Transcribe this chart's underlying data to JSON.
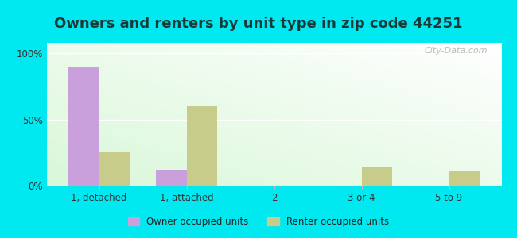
{
  "title": "Owners and renters by unit type in zip code 44251",
  "categories": [
    "1, detached",
    "1, attached",
    "2",
    "3 or 4",
    "5 to 9"
  ],
  "owner_values": [
    90,
    12,
    0,
    0,
    0
  ],
  "renter_values": [
    25,
    60,
    0,
    14,
    11
  ],
  "owner_color": "#c9a0dc",
  "renter_color": "#c8cc8a",
  "background_outer": "#00e8f0",
  "yticks": [
    0,
    50,
    100
  ],
  "ylabels": [
    "0%",
    "50%",
    "100%"
  ],
  "ylim": [
    0,
    108
  ],
  "bar_width": 0.35,
  "legend_owner": "Owner occupied units",
  "legend_renter": "Renter occupied units",
  "title_fontsize": 13,
  "watermark": "City-Data.com"
}
